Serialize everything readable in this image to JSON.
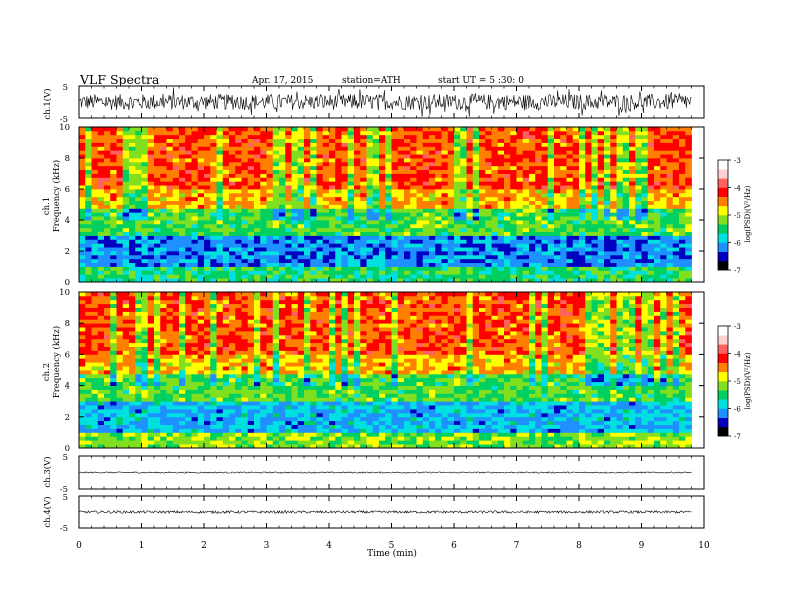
{
  "header": {
    "title": "VLF  Spectra",
    "date": "Apr. 17, 2015",
    "station": "station=ATH",
    "start": "start  UT  =   5  :30: 0"
  },
  "colors": {
    "trace": "#000000",
    "colormap": [
      "#000000",
      "#0000c0",
      "#1e90ff",
      "#00e0e0",
      "#00d060",
      "#80e020",
      "#ffff00",
      "#ff8000",
      "#ff0000",
      "#ff6060",
      "#ffd0d0",
      "#ffffff"
    ]
  },
  "chart_data": [
    {
      "type": "line",
      "panel": "ch1",
      "ylabel": "ch.1(V)",
      "ylim": [
        -5,
        5
      ],
      "y_ticks": [
        "5",
        "-5"
      ],
      "xlabel": "Time  (min)",
      "xlim": [
        0,
        10
      ],
      "x_ticks": [
        "0",
        "1",
        "2",
        "3",
        "4",
        "5",
        "6",
        "7",
        "8",
        "9",
        "10"
      ],
      "data_end_min": 9.8,
      "baseline": 0,
      "amplitude_range": [
        -2.5,
        2.5
      ]
    },
    {
      "type": "heatmap",
      "panel": "ch1-spectrogram",
      "ylabel": "ch.1",
      "ylabel2": "Frequency  (kHz)",
      "ylim": [
        0,
        10
      ],
      "y_ticks": [
        "0",
        "2",
        "4",
        "6",
        "8",
        "10"
      ],
      "xlim": [
        0,
        10
      ],
      "colorbar": {
        "label": "log(PSD)(V²/Hz)",
        "range": [
          -7,
          -3
        ],
        "ticks": [
          "-3",
          "-4",
          "-5",
          "-6",
          "-7"
        ]
      },
      "bands": [
        {
          "freq_khz": [
            0,
            1.0
          ],
          "log_psd": -5.2
        },
        {
          "freq_khz": [
            1.0,
            3.0
          ],
          "log_psd": -6.0
        },
        {
          "freq_khz": [
            3.0,
            4.8
          ],
          "log_psd": -5.0
        },
        {
          "freq_khz": [
            4.8,
            6.0
          ],
          "log_psd": -4.2
        },
        {
          "freq_khz": [
            6.0,
            10
          ],
          "log_psd": -3.8
        }
      ]
    },
    {
      "type": "heatmap",
      "panel": "ch2-spectrogram",
      "ylabel": "ch.2",
      "ylabel2": "Frequency  (kHz)",
      "ylim": [
        0,
        10
      ],
      "y_ticks": [
        "0",
        "2",
        "4",
        "6",
        "8",
        "10"
      ],
      "xlim": [
        0,
        10
      ],
      "colorbar": {
        "label": "log(PSD)(V²/Hz)",
        "range": [
          -7,
          -3
        ],
        "ticks": [
          "-3",
          "-4",
          "-5",
          "-6",
          "-7"
        ]
      },
      "bands": [
        {
          "freq_khz": [
            0,
            1.0
          ],
          "log_psd": -4.8
        },
        {
          "freq_khz": [
            1.0,
            3.0
          ],
          "log_psd": -5.8
        },
        {
          "freq_khz": [
            3.0,
            4.8
          ],
          "log_psd": -5.0
        },
        {
          "freq_khz": [
            4.8,
            6.0
          ],
          "log_psd": -4.2
        },
        {
          "freq_khz": [
            6.0,
            10
          ],
          "log_psd": -3.8
        }
      ]
    },
    {
      "type": "line",
      "panel": "ch3",
      "ylabel": "ch.3(V)",
      "ylim": [
        -5,
        5
      ],
      "y_ticks": [
        "5",
        "-5"
      ],
      "xlim": [
        0,
        10
      ],
      "baseline": 0,
      "amplitude_range": [
        -0.2,
        0.2
      ]
    },
    {
      "type": "line",
      "panel": "ch4",
      "ylabel": "ch.4(V)",
      "ylim": [
        -5,
        5
      ],
      "y_ticks": [
        "5",
        "-5"
      ],
      "xlim": [
        0,
        10
      ],
      "baseline": 0,
      "amplitude_range": [
        -0.4,
        0.4
      ]
    }
  ]
}
